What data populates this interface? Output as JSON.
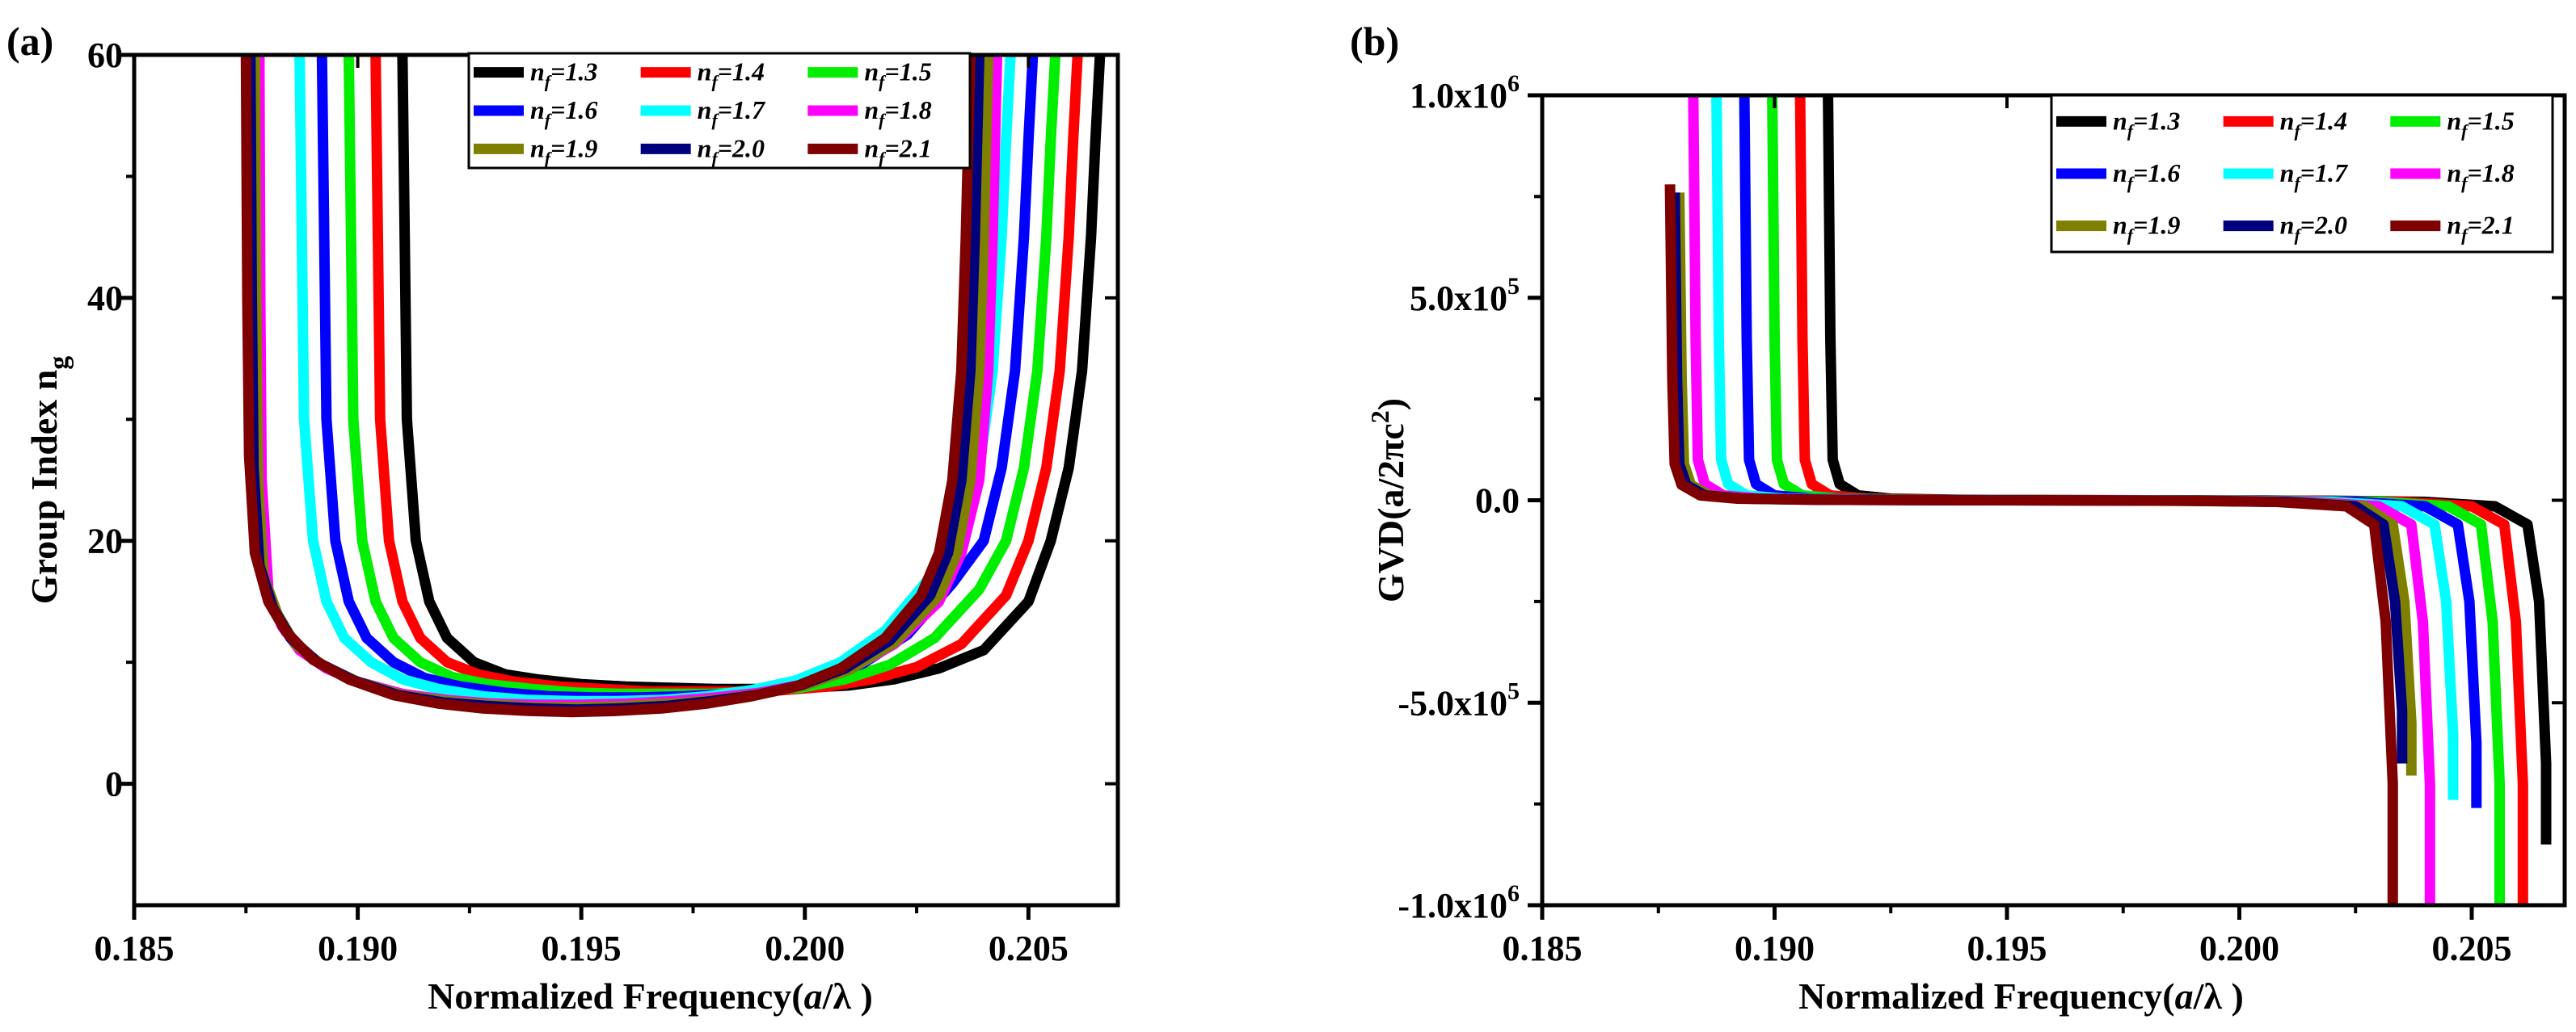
{
  "chart_data": [
    {
      "panel_label": "(a)",
      "type": "line",
      "xlabel": "Normalized Frequency(a/λ )",
      "ylabel": "Group Index ng",
      "xlim": [
        0.185,
        0.207
      ],
      "ylim": [
        -10,
        60
      ],
      "xticks": [
        0.185,
        0.19,
        0.195,
        0.2,
        0.205
      ],
      "xtick_labels": [
        "0.185",
        "0.190",
        "0.195",
        "0.200",
        "0.205"
      ],
      "yticks": [
        0,
        20,
        40,
        60
      ],
      "ytick_labels": [
        "0",
        "20",
        "40",
        "60"
      ],
      "legend_position": "top-right",
      "series": [
        {
          "name": "nf=1.3",
          "color": "#000000",
          "x": [
            0.191,
            0.19105,
            0.1911,
            0.1913,
            0.1916,
            0.192,
            0.1926,
            0.1933,
            0.194,
            0.195,
            0.196,
            0.197,
            0.198,
            0.199,
            0.2,
            0.201,
            0.202,
            0.203,
            0.204,
            0.205,
            0.2055,
            0.2059,
            0.2062,
            0.2064,
            0.2065,
            0.2066
          ],
          "y": [
            60,
            45,
            30,
            20,
            15,
            12,
            10,
            9,
            8.6,
            8.2,
            8.0,
            7.9,
            7.8,
            7.8,
            7.9,
            8.1,
            8.6,
            9.5,
            11,
            15,
            20,
            26,
            34,
            45,
            53,
            60
          ]
        },
        {
          "name": "nf=1.4",
          "color": "#ff0000",
          "x": [
            0.1904,
            0.19045,
            0.1905,
            0.1907,
            0.191,
            0.1914,
            0.192,
            0.1927,
            0.1935,
            0.1945,
            0.1955,
            0.1965,
            0.1975,
            0.1985,
            0.1995,
            0.2005,
            0.2015,
            0.2025,
            0.2035,
            0.2045,
            0.205,
            0.2054,
            0.2057,
            0.2059,
            0.206,
            0.2061
          ],
          "y": [
            60,
            45,
            30,
            20,
            15,
            12,
            10,
            9,
            8.4,
            8.0,
            7.8,
            7.6,
            7.6,
            7.6,
            7.7,
            8.0,
            8.6,
            9.6,
            11.5,
            15.5,
            20,
            26,
            34,
            45,
            53,
            60
          ]
        },
        {
          "name": "nf=1.5",
          "color": "#00ee00",
          "x": [
            0.1898,
            0.18985,
            0.1899,
            0.1901,
            0.1904,
            0.1908,
            0.1914,
            0.1921,
            0.1929,
            0.1939,
            0.1949,
            0.1959,
            0.1969,
            0.1979,
            0.1989,
            0.1999,
            0.2009,
            0.2019,
            0.2029,
            0.2039,
            0.2045,
            0.2049,
            0.2052,
            0.2054,
            0.2055,
            0.2056
          ],
          "y": [
            60,
            45,
            30,
            20,
            15,
            12,
            10,
            8.8,
            8.2,
            7.8,
            7.5,
            7.4,
            7.4,
            7.4,
            7.6,
            7.9,
            8.6,
            9.8,
            12,
            16,
            20,
            26,
            34,
            45,
            53,
            60
          ]
        },
        {
          "name": "nf=1.6",
          "color": "#0000ff",
          "x": [
            0.1892,
            0.18925,
            0.1893,
            0.1895,
            0.1898,
            0.1902,
            0.1908,
            0.1915,
            0.1923,
            0.1933,
            0.1943,
            0.1953,
            0.1963,
            0.1973,
            0.1983,
            0.1993,
            0.2003,
            0.2013,
            0.2023,
            0.2033,
            0.204,
            0.2044,
            0.2047,
            0.2049,
            0.205,
            0.2051
          ],
          "y": [
            60,
            45,
            30,
            20,
            15,
            12,
            10,
            8.7,
            8.0,
            7.5,
            7.2,
            7.1,
            7.1,
            7.2,
            7.4,
            7.8,
            8.6,
            9.9,
            12.3,
            16.5,
            20,
            26,
            34,
            45,
            53,
            60
          ]
        },
        {
          "name": "nf=1.7",
          "color": "#00ffff",
          "x": [
            0.1887,
            0.18875,
            0.1888,
            0.189,
            0.1893,
            0.1897,
            0.1903,
            0.191,
            0.1918,
            0.1928,
            0.1938,
            0.1948,
            0.1958,
            0.1968,
            0.1978,
            0.1988,
            0.1998,
            0.2008,
            0.2018,
            0.2028,
            0.2035,
            0.2039,
            0.2042,
            0.2044,
            0.2045,
            0.2046
          ],
          "y": [
            60,
            45,
            30,
            20,
            15,
            12,
            10,
            8.6,
            7.8,
            7.2,
            6.9,
            6.8,
            6.8,
            6.9,
            7.2,
            7.7,
            8.5,
            10,
            12.6,
            17,
            20,
            26,
            34,
            45,
            53,
            60
          ]
        },
        {
          "name": "nf=1.8",
          "color": "#ff00ff",
          "x": [
            0.1878,
            0.18782,
            0.18785,
            0.188,
            0.1883,
            0.1887,
            0.1893,
            0.19,
            0.191,
            0.192,
            0.193,
            0.194,
            0.195,
            0.196,
            0.197,
            0.198,
            0.199,
            0.2,
            0.201,
            0.202,
            0.203,
            0.2035,
            0.2039,
            0.2041,
            0.2042,
            0.2043
          ],
          "y": [
            60,
            40,
            25,
            16,
            13,
            11,
            9.5,
            8.4,
            7.4,
            6.9,
            6.6,
            6.5,
            6.5,
            6.6,
            6.8,
            7.1,
            7.5,
            8.2,
            9.4,
            11.5,
            15,
            19,
            25,
            34,
            45,
            60
          ]
        },
        {
          "name": "nf=1.9",
          "color": "#808000",
          "x": [
            0.1877,
            0.18773,
            0.18777,
            0.1879,
            0.1882,
            0.1886,
            0.1892,
            0.19,
            0.191,
            0.192,
            0.193,
            0.194,
            0.195,
            0.196,
            0.197,
            0.198,
            0.199,
            0.2,
            0.201,
            0.202,
            0.203,
            0.2034,
            0.2037,
            0.2039,
            0.204,
            0.2041
          ],
          "y": [
            60,
            40,
            25,
            17,
            14,
            11.5,
            9.8,
            8.4,
            7.3,
            6.8,
            6.5,
            6.3,
            6.3,
            6.4,
            6.6,
            6.9,
            7.4,
            8.1,
            9.4,
            11.6,
            15.5,
            19,
            25,
            34,
            45,
            60
          ]
        },
        {
          "name": "nf=2.0",
          "color": "#00007f",
          "x": [
            0.1876,
            0.18763,
            0.18767,
            0.1878,
            0.1881,
            0.1885,
            0.1891,
            0.1899,
            0.1909,
            0.1919,
            0.1929,
            0.1939,
            0.1949,
            0.1959,
            0.1969,
            0.1979,
            0.1989,
            0.1999,
            0.2009,
            0.2019,
            0.2028,
            0.2032,
            0.2035,
            0.2037,
            0.2038,
            0.2039
          ],
          "y": [
            60,
            40,
            26,
            18,
            14.5,
            12,
            10,
            8.5,
            7.3,
            6.7,
            6.4,
            6.2,
            6.1,
            6.2,
            6.4,
            6.8,
            7.3,
            8.1,
            9.5,
            11.8,
            15.5,
            19,
            25,
            34,
            45,
            60
          ]
        },
        {
          "name": "nf=2.1",
          "color": "#7f0000",
          "x": [
            0.1875,
            0.18753,
            0.18757,
            0.1877,
            0.188,
            0.1884,
            0.189,
            0.1898,
            0.1908,
            0.1918,
            0.1928,
            0.1938,
            0.1948,
            0.1958,
            0.1968,
            0.1978,
            0.1988,
            0.1998,
            0.2008,
            0.2018,
            0.2026,
            0.203,
            0.2033,
            0.2035,
            0.2036,
            0.2037
          ],
          "y": [
            60,
            40,
            27,
            19,
            15,
            12.5,
            10.2,
            8.6,
            7.3,
            6.6,
            6.2,
            6.0,
            5.9,
            6.0,
            6.2,
            6.6,
            7.2,
            8.0,
            9.5,
            12,
            15.5,
            19,
            25,
            34,
            45,
            60
          ]
        }
      ]
    },
    {
      "panel_label": "(b)",
      "type": "line",
      "xlabel": "Normalized Frequency(a/λ )",
      "ylabel": "GVD(a/2πc2)",
      "xlim": [
        0.185,
        0.207
      ],
      "ylim": [
        -1000000,
        1000000
      ],
      "xticks": [
        0.185,
        0.19,
        0.195,
        0.2,
        0.205
      ],
      "xtick_labels": [
        "0.185",
        "0.190",
        "0.195",
        "0.200",
        "0.205"
      ],
      "yticks": [
        -1000000,
        -500000,
        0,
        500000,
        1000000
      ],
      "ytick_labels": [
        {
          "base": "-1.0x10",
          "exp": "6"
        },
        {
          "base": "-5.0x10",
          "exp": "5"
        },
        {
          "base": "0.0",
          "exp": ""
        },
        {
          "base": "5.0x10",
          "exp": "5"
        },
        {
          "base": "1.0x10",
          "exp": "6"
        }
      ],
      "legend_position": "top-right",
      "series": [
        {
          "name": "nf=1.3",
          "color": "#000000",
          "x": [
            0.19115,
            0.1912,
            0.19125,
            0.1914,
            0.1918,
            0.1925,
            0.194,
            0.196,
            0.198,
            0.2,
            0.202,
            0.204,
            0.2055,
            0.2062,
            0.20645,
            0.2066,
            0.2066
          ],
          "y": [
            1000000,
            400000,
            100000,
            40000,
            12000,
            4000,
            1200,
            400,
            0,
            -300,
            -1200,
            -4000,
            -15000,
            -60000,
            -250000,
            -650000,
            -850000
          ]
        },
        {
          "name": "nf=1.4",
          "color": "#ff0000",
          "x": [
            0.19055,
            0.1906,
            0.19065,
            0.1908,
            0.1912,
            0.192,
            0.1935,
            0.1955,
            0.1975,
            0.1995,
            0.2015,
            0.2035,
            0.205,
            0.2057,
            0.20595,
            0.2061,
            0.2061
          ],
          "y": [
            1000000,
            400000,
            100000,
            40000,
            12000,
            4000,
            1200,
            400,
            0,
            -300,
            -1200,
            -4000,
            -15000,
            -60000,
            -300000,
            -700000,
            -1000000
          ]
        },
        {
          "name": "nf=1.5",
          "color": "#00ee00",
          "x": [
            0.18995,
            0.19,
            0.19005,
            0.1902,
            0.1906,
            0.1914,
            0.193,
            0.195,
            0.197,
            0.199,
            0.201,
            0.203,
            0.2045,
            0.2052,
            0.20545,
            0.2056,
            0.2056
          ],
          "y": [
            1000000,
            400000,
            100000,
            40000,
            12000,
            4000,
            1200,
            400,
            0,
            -300,
            -1200,
            -4000,
            -15000,
            -60000,
            -300000,
            -700000,
            -1000000
          ]
        },
        {
          "name": "nf=1.6",
          "color": "#0000ff",
          "x": [
            0.18935,
            0.1894,
            0.18945,
            0.1896,
            0.19,
            0.1908,
            0.1925,
            0.1945,
            0.1965,
            0.1985,
            0.2005,
            0.2025,
            0.204,
            0.2047,
            0.20495,
            0.2051,
            0.2051
          ],
          "y": [
            1000000,
            400000,
            100000,
            40000,
            12000,
            4000,
            1200,
            400,
            0,
            -300,
            -1200,
            -4000,
            -15000,
            -60000,
            -250000,
            -600000,
            -760000
          ]
        },
        {
          "name": "nf=1.7",
          "color": "#00ffff",
          "x": [
            0.18875,
            0.1888,
            0.18885,
            0.189,
            0.1894,
            0.1902,
            0.192,
            0.194,
            0.196,
            0.198,
            0.2,
            0.202,
            0.2035,
            0.2042,
            0.20445,
            0.2046,
            0.2046
          ],
          "y": [
            1000000,
            400000,
            100000,
            40000,
            12000,
            4000,
            1200,
            400,
            0,
            -300,
            -1200,
            -4000,
            -15000,
            -60000,
            -250000,
            -580000,
            -740000
          ]
        },
        {
          "name": "nf=1.8",
          "color": "#ff00ff",
          "x": [
            0.18825,
            0.1883,
            0.18835,
            0.1885,
            0.1889,
            0.1897,
            0.1915,
            0.1935,
            0.1955,
            0.1975,
            0.1995,
            0.2015,
            0.203,
            0.2037,
            0.20395,
            0.2041,
            0.2041
          ],
          "y": [
            1000000,
            400000,
            100000,
            40000,
            12000,
            4000,
            1200,
            400,
            0,
            -300,
            -1200,
            -4000,
            -15000,
            -60000,
            -300000,
            -700000,
            -1000000
          ]
        },
        {
          "name": "nf=1.9",
          "color": "#808000",
          "x": [
            0.18795,
            0.188,
            0.18805,
            0.1882,
            0.1886,
            0.1894,
            0.1912,
            0.1932,
            0.1952,
            0.1972,
            0.1992,
            0.2012,
            0.2027,
            0.2033,
            0.20355,
            0.2037,
            0.2037
          ],
          "y": [
            760000,
            300000,
            90000,
            38000,
            12000,
            4000,
            1200,
            400,
            0,
            -300,
            -1200,
            -4000,
            -15000,
            -60000,
            -250000,
            -550000,
            -680000
          ]
        },
        {
          "name": "nf=2.0",
          "color": "#00007f",
          "x": [
            0.18785,
            0.1879,
            0.18795,
            0.1881,
            0.1885,
            0.1893,
            0.191,
            0.193,
            0.195,
            0.197,
            0.199,
            0.201,
            0.2025,
            0.2031,
            0.20335,
            0.2035,
            0.2035
          ],
          "y": [
            760000,
            300000,
            90000,
            38000,
            12000,
            4000,
            1200,
            400,
            0,
            -300,
            -1200,
            -4000,
            -15000,
            -60000,
            -250000,
            -520000,
            -650000
          ]
        },
        {
          "name": "nf=2.1",
          "color": "#7f0000",
          "x": [
            0.18775,
            0.1878,
            0.18785,
            0.188,
            0.1884,
            0.1892,
            0.1908,
            0.1928,
            0.1948,
            0.1968,
            0.1988,
            0.2008,
            0.2023,
            0.2029,
            0.20315,
            0.2033,
            0.2033
          ],
          "y": [
            780000,
            300000,
            90000,
            38000,
            12000,
            4000,
            1200,
            400,
            0,
            -300,
            -1200,
            -4000,
            -15000,
            -60000,
            -300000,
            -700000,
            -1000000
          ]
        }
      ]
    }
  ]
}
